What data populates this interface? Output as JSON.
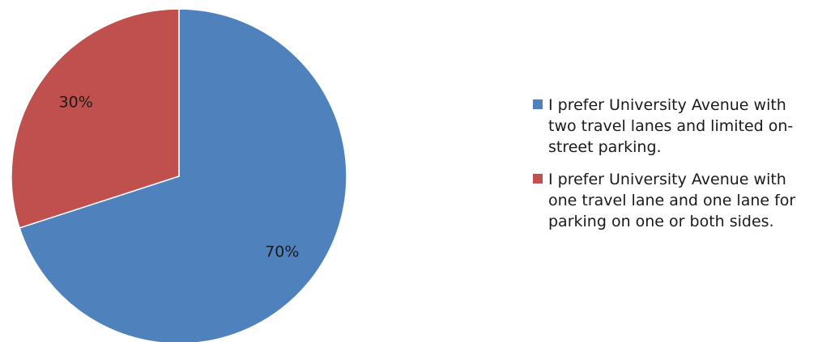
{
  "chart_data": {
    "type": "pie",
    "slices": [
      {
        "label": "I prefer University Avenue with two travel lanes and limited on-street parking.",
        "value": 70,
        "data_label": "70%",
        "color": "#4F81BD"
      },
      {
        "label": "I prefer University Avenue with one travel lane and one lane for parking on one or both sides.",
        "value": 30,
        "data_label": "30%",
        "color": "#C0504D"
      }
    ],
    "legend_position": "right"
  },
  "legend": {
    "items": [
      {
        "lines": [
          "I prefer University Avenue with",
          "two travel lanes and limited on-",
          "street parking."
        ],
        "color": "#4F81BD"
      },
      {
        "lines": [
          "I prefer University Avenue with",
          "one travel lane and one lane for",
          "parking on one or both sides."
        ],
        "color": "#C0504D"
      }
    ]
  }
}
